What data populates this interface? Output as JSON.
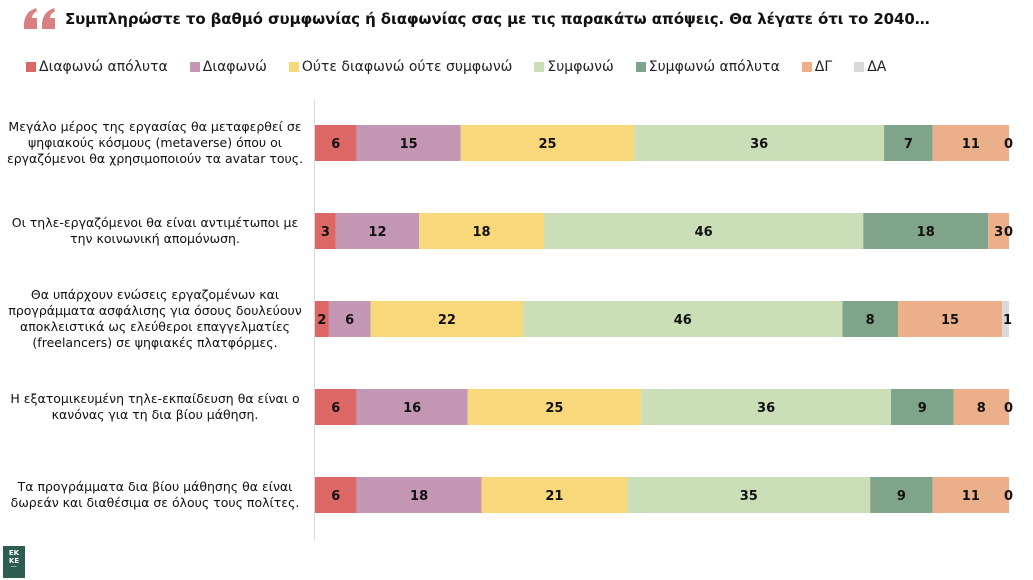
{
  "header": {
    "quote_icon": "quote-icon",
    "title": "Συμπληρώστε το βαθμό συμφωνίας ή διαφωνίας σας με τις παρακάτω απόψεις. Θα λέγατε ότι το 2040…"
  },
  "logo": {
    "text_line1": "EK",
    "text_line2": "KE"
  },
  "colors": {
    "quote": "#d98080",
    "axis": "#d9d9d9",
    "logo_bg": "#2e5e52"
  },
  "chart_data": {
    "type": "bar",
    "orientation": "horizontal",
    "stacked": true,
    "title": "Συμπληρώστε το βαθμό συμφωνίας ή διαφωνίας σας με τις παρακάτω απόψεις. Θα λέγατε ότι το 2040…",
    "xlabel": "",
    "ylabel": "",
    "xlim": [
      0,
      100
    ],
    "grid": false,
    "legend_position": "top",
    "categories": [
      "Μεγάλο μέρος της εργασίας θα μεταφερθεί σε ψηφιακούς κόσμους (metaverse) όπου οι εργαζόμενοι θα χρησιμοποιούν τα avatar τους.",
      "Οι τηλε-εργαζόμενοι θα είναι αντιμέτωποι με την κοινωνική απομόνωση.",
      "Θα υπάρχουν ενώσεις εργαζομένων και προγράμματα ασφάλισης για όσους δουλεύουν αποκλειστικά ως ελεύθεροι επαγγελματίες (freelancers) σε ψηφιακές πλατφόρμες.",
      "Η εξατομικευμένη τηλε-εκπαίδευση  θα είναι ο κανόνας για τη δια βίου μάθηση.",
      "Τα προγράμματα δια βίου μάθησης θα είναι δωρεάν και διαθέσιμα σε όλους τους πολίτες."
    ],
    "series": [
      {
        "name": "Διαφωνώ απόλυτα",
        "color": "#db6864",
        "values": [
          6,
          3,
          2,
          6,
          6
        ]
      },
      {
        "name": "Διαφωνώ",
        "color": "#c396b3",
        "values": [
          15,
          12,
          6,
          16,
          18
        ]
      },
      {
        "name": "Ούτε διαφωνώ ούτε συμφωνώ",
        "color": "#f9d77b",
        "values": [
          25,
          18,
          22,
          25,
          21
        ]
      },
      {
        "name": "Συμφωνώ",
        "color": "#cadfb8",
        "values": [
          36,
          46,
          46,
          36,
          35
        ]
      },
      {
        "name": "Συμφωνώ απόλυτα",
        "color": "#7fa489",
        "values": [
          7,
          18,
          8,
          9,
          9
        ]
      },
      {
        "name": "ΔΓ",
        "color": "#ebb08a",
        "values": [
          11,
          3,
          15,
          8,
          11
        ]
      },
      {
        "name": "ΔΑ",
        "color": "#d9d9d9",
        "values": [
          0,
          0,
          1,
          0,
          0
        ]
      }
    ]
  }
}
